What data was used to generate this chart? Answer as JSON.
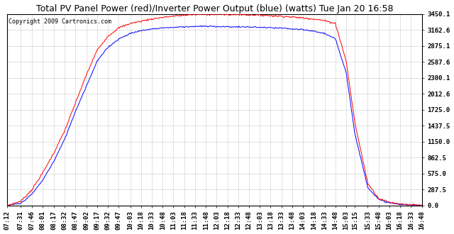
{
  "title": "Total PV Panel Power (red)/Inverter Power Output (blue) (watts) Tue Jan 20 16:58",
  "copyright": "Copyright 2009 Cartronics.com",
  "bg_color": "#ffffff",
  "grid_color": "#aaaaaa",
  "y_labels": [
    0.0,
    287.5,
    575.0,
    862.5,
    1150.0,
    1437.5,
    1725.0,
    2012.6,
    2300.1,
    2587.6,
    2875.1,
    3162.6,
    3450.1
  ],
  "ylim": [
    0,
    3450.1
  ],
  "x_labels": [
    "07:12",
    "07:31",
    "07:46",
    "08:01",
    "08:17",
    "08:32",
    "08:47",
    "09:02",
    "09:17",
    "09:32",
    "09:47",
    "10:03",
    "10:18",
    "10:33",
    "10:48",
    "11:03",
    "11:18",
    "11:33",
    "11:48",
    "12:03",
    "12:18",
    "12:33",
    "12:48",
    "13:03",
    "13:18",
    "13:33",
    "13:48",
    "14:03",
    "14:18",
    "14:33",
    "14:48",
    "15:03",
    "15:15",
    "15:33",
    "15:48",
    "16:03",
    "16:18",
    "16:33",
    "16:48"
  ],
  "red_color": "#ff0000",
  "blue_color": "#0000ff",
  "title_fontsize": 9,
  "copyright_fontsize": 6,
  "tick_fontsize": 6.5
}
